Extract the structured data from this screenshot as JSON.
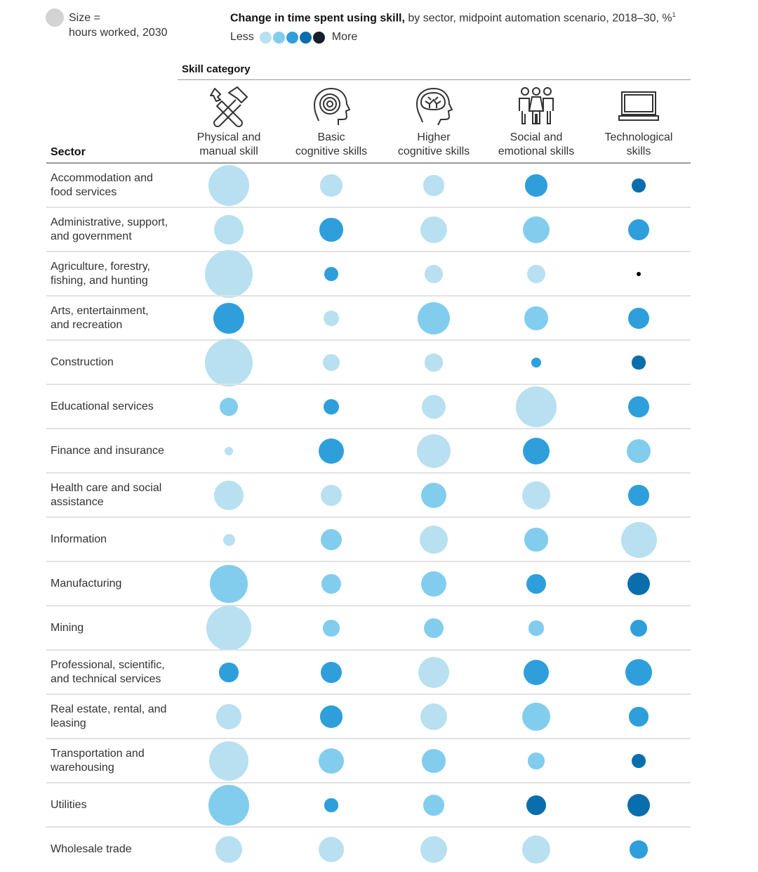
{
  "legend": {
    "size_label_line1": "Size =",
    "size_label_line2": "hours worked, 2030",
    "size_dot_color": "#d3d3d3",
    "title_bold": "Change in time spent using skill,",
    "title_rest": " by sector, midpoint automation scenario, 2018–30, %",
    "title_footnote": "1",
    "less_label": "Less",
    "more_label": "More",
    "shades": [
      "#b8e0f0",
      "#82cdee",
      "#2e9fdb",
      "#0a6eae",
      "#161e27"
    ]
  },
  "header": {
    "skill_category_label": "Skill category",
    "sector_label": "Sector"
  },
  "chart_data": {
    "type": "bubble-matrix",
    "title": "Change in time spent using skill, by sector, midpoint automation scenario, 2018–30, %",
    "size_encoding": "hours worked, 2030 (relative, fraction of largest bubble diameter)",
    "color_encoding": "change in time spent using skill, level 1 (Less) to 5 (More)",
    "columns": [
      {
        "label_line1": "Physical and",
        "label_line2": "manual skill",
        "icon": "hammer-wrench-icon"
      },
      {
        "label_line1": "Basic",
        "label_line2": "cognitive skills",
        "icon": "head-spiral-icon"
      },
      {
        "label_line1": "Higher",
        "label_line2": "cognitive skills",
        "icon": "head-brain-icon"
      },
      {
        "label_line1": "Social and",
        "label_line2": "emotional skills",
        "icon": "people-group-icon"
      },
      {
        "label_line1": "Technological",
        "label_line2": "skills",
        "icon": "laptop-icon"
      }
    ],
    "rows": [
      {
        "sector": "Accommodation and\nfood services",
        "cells": [
          {
            "size": 0.85,
            "level": 1
          },
          {
            "size": 0.46,
            "level": 1
          },
          {
            "size": 0.43,
            "level": 1
          },
          {
            "size": 0.46,
            "level": 3
          },
          {
            "size": 0.29,
            "level": 4
          }
        ]
      },
      {
        "sector": "Administrative, support,\nand government",
        "cells": [
          {
            "size": 0.62,
            "level": 1
          },
          {
            "size": 0.49,
            "level": 3
          },
          {
            "size": 0.56,
            "level": 1
          },
          {
            "size": 0.56,
            "level": 2
          },
          {
            "size": 0.44,
            "level": 3
          }
        ]
      },
      {
        "sector": "Agriculture, forestry,\nfishing, and hunting",
        "cells": [
          {
            "size": 1.0,
            "level": 1
          },
          {
            "size": 0.29,
            "level": 3
          },
          {
            "size": 0.38,
            "level": 1
          },
          {
            "size": 0.38,
            "level": 1
          },
          {
            "size": 0.09,
            "level": 5
          }
        ]
      },
      {
        "sector": "Arts, entertainment,\nand recreation",
        "cells": [
          {
            "size": 0.66,
            "level": 3
          },
          {
            "size": 0.32,
            "level": 1
          },
          {
            "size": 0.68,
            "level": 2
          },
          {
            "size": 0.49,
            "level": 2
          },
          {
            "size": 0.44,
            "level": 3
          }
        ]
      },
      {
        "sector": "Construction",
        "cells": [
          {
            "size": 1.0,
            "level": 1
          },
          {
            "size": 0.35,
            "level": 1
          },
          {
            "size": 0.37,
            "level": 1
          },
          {
            "size": 0.22,
            "level": 3
          },
          {
            "size": 0.28,
            "level": 4
          }
        ]
      },
      {
        "sector": "Educational services",
        "cells": [
          {
            "size": 0.38,
            "level": 2
          },
          {
            "size": 0.32,
            "level": 3
          },
          {
            "size": 0.5,
            "level": 1
          },
          {
            "size": 0.85,
            "level": 1
          },
          {
            "size": 0.43,
            "level": 3
          }
        ]
      },
      {
        "sector": "Finance and insurance",
        "cells": [
          {
            "size": 0.19,
            "level": 1
          },
          {
            "size": 0.54,
            "level": 3
          },
          {
            "size": 0.71,
            "level": 1
          },
          {
            "size": 0.56,
            "level": 3
          },
          {
            "size": 0.51,
            "level": 2
          }
        ]
      },
      {
        "sector": "Health care and social\nassistance",
        "cells": [
          {
            "size": 0.63,
            "level": 1
          },
          {
            "size": 0.44,
            "level": 1
          },
          {
            "size": 0.53,
            "level": 2
          },
          {
            "size": 0.59,
            "level": 1
          },
          {
            "size": 0.43,
            "level": 3
          }
        ]
      },
      {
        "sector": "Information",
        "cells": [
          {
            "size": 0.25,
            "level": 1
          },
          {
            "size": 0.44,
            "level": 2
          },
          {
            "size": 0.6,
            "level": 1
          },
          {
            "size": 0.49,
            "level": 2
          },
          {
            "size": 0.75,
            "level": 1
          }
        ]
      },
      {
        "sector": "Manufacturing",
        "cells": [
          {
            "size": 0.78,
            "level": 2
          },
          {
            "size": 0.41,
            "level": 2
          },
          {
            "size": 0.53,
            "level": 2
          },
          {
            "size": 0.41,
            "level": 3
          },
          {
            "size": 0.47,
            "level": 4
          }
        ]
      },
      {
        "sector": "Mining",
        "cells": [
          {
            "size": 0.94,
            "level": 1
          },
          {
            "size": 0.34,
            "level": 2
          },
          {
            "size": 0.41,
            "level": 2
          },
          {
            "size": 0.31,
            "level": 2
          },
          {
            "size": 0.35,
            "level": 3
          }
        ]
      },
      {
        "sector": "Professional, scientific,\nand technical services",
        "cells": [
          {
            "size": 0.4,
            "level": 3
          },
          {
            "size": 0.44,
            "level": 3
          },
          {
            "size": 0.66,
            "level": 1
          },
          {
            "size": 0.54,
            "level": 3
          },
          {
            "size": 0.57,
            "level": 3
          }
        ]
      },
      {
        "sector": "Real estate, rental, and\nleasing",
        "cells": [
          {
            "size": 0.53,
            "level": 1
          },
          {
            "size": 0.46,
            "level": 3
          },
          {
            "size": 0.56,
            "level": 1
          },
          {
            "size": 0.6,
            "level": 2
          },
          {
            "size": 0.4,
            "level": 3
          }
        ]
      },
      {
        "sector": "Transportation and\nwarehousing",
        "cells": [
          {
            "size": 0.82,
            "level": 1
          },
          {
            "size": 0.53,
            "level": 2
          },
          {
            "size": 0.49,
            "level": 2
          },
          {
            "size": 0.34,
            "level": 2
          },
          {
            "size": 0.29,
            "level": 4
          }
        ]
      },
      {
        "sector": "Utilities",
        "cells": [
          {
            "size": 0.85,
            "level": 2
          },
          {
            "size": 0.28,
            "level": 3
          },
          {
            "size": 0.44,
            "level": 2
          },
          {
            "size": 0.41,
            "level": 4
          },
          {
            "size": 0.47,
            "level": 4
          }
        ]
      },
      {
        "sector": "Wholesale trade",
        "cells": [
          {
            "size": 0.57,
            "level": 1
          },
          {
            "size": 0.53,
            "level": 1
          },
          {
            "size": 0.56,
            "level": 1
          },
          {
            "size": 0.59,
            "level": 1
          },
          {
            "size": 0.37,
            "level": 3
          }
        ]
      }
    ]
  }
}
